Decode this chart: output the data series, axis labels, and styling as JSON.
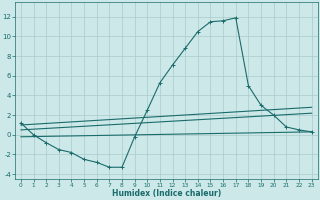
{
  "xlabel": "Humidex (Indice chaleur)",
  "background_color": "#cde8e8",
  "grid_color": "#aacaca",
  "line_color": "#1a6b6b",
  "xlim": [
    -0.5,
    23.5
  ],
  "ylim": [
    -4.5,
    13.5
  ],
  "xticks": [
    0,
    1,
    2,
    3,
    4,
    5,
    6,
    7,
    8,
    9,
    10,
    11,
    12,
    13,
    14,
    15,
    16,
    17,
    18,
    19,
    20,
    21,
    22,
    23
  ],
  "yticks": [
    -4,
    -2,
    0,
    2,
    4,
    6,
    8,
    10,
    12
  ],
  "curve1_x": [
    0,
    1,
    2,
    3,
    4,
    5,
    6,
    7,
    8,
    9,
    10,
    11,
    12,
    13,
    14,
    15,
    16,
    17,
    18,
    19,
    20,
    21,
    22,
    23
  ],
  "curve1_y": [
    1.2,
    0.0,
    -0.8,
    -1.5,
    -1.8,
    -2.5,
    -2.8,
    -3.3,
    -3.3,
    -0.2,
    2.5,
    5.3,
    7.1,
    8.8,
    10.5,
    11.5,
    11.6,
    11.9,
    5.0,
    3.0,
    2.0,
    0.8,
    0.5,
    0.3
  ],
  "curve2_x": [
    0,
    23
  ],
  "curve2_y": [
    1.0,
    2.8
  ],
  "curve3_x": [
    0,
    23
  ],
  "curve3_y": [
    0.5,
    2.2
  ],
  "curve4_x": [
    0,
    23
  ],
  "curve4_y": [
    -0.2,
    0.3
  ]
}
